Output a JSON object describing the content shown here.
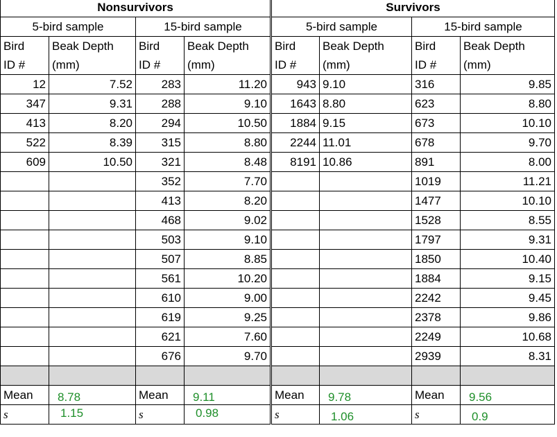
{
  "groups": {
    "nonsurvivors": "Nonsurvivors",
    "survivors": "Survivors"
  },
  "samples": {
    "five": "5-bird sample",
    "fifteen": "15-bird sample"
  },
  "col_headers": {
    "bird_l1": "Bird",
    "bird_l2": "ID #",
    "beak_l1": "Beak Depth",
    "beak_l2": "(mm)"
  },
  "rows": [
    {
      "ns5_id": "12",
      "ns5_val": "7.52",
      "ns15_id": "283",
      "ns15_val": "11.20",
      "s5_id": "943",
      "s5_val": "9.10",
      "s15_id": "316",
      "s15_val": "9.85"
    },
    {
      "ns5_id": "347",
      "ns5_val": "9.31",
      "ns15_id": "288",
      "ns15_val": "9.10",
      "s5_id": "1643",
      "s5_val": "8.80",
      "s15_id": "623",
      "s15_val": "8.80"
    },
    {
      "ns5_id": "413",
      "ns5_val": "8.20",
      "ns15_id": "294",
      "ns15_val": "10.50",
      "s5_id": "1884",
      "s5_val": "9.15",
      "s15_id": "673",
      "s15_val": "10.10"
    },
    {
      "ns5_id": "522",
      "ns5_val": "8.39",
      "ns15_id": "315",
      "ns15_val": "8.80",
      "s5_id": "2244",
      "s5_val": "11.01",
      "s15_id": "678",
      "s15_val": "9.70"
    },
    {
      "ns5_id": "609",
      "ns5_val": "10.50",
      "ns15_id": "321",
      "ns15_val": "8.48",
      "s5_id": "8191",
      "s5_val": "10.86",
      "s15_id": "891",
      "s15_val": "8.00"
    },
    {
      "ns5_id": "",
      "ns5_val": "",
      "ns15_id": "352",
      "ns15_val": "7.70",
      "s5_id": "",
      "s5_val": "",
      "s15_id": "1019",
      "s15_val": "11.21"
    },
    {
      "ns5_id": "",
      "ns5_val": "",
      "ns15_id": "413",
      "ns15_val": "8.20",
      "s5_id": "",
      "s5_val": "",
      "s15_id": "1477",
      "s15_val": "10.10"
    },
    {
      "ns5_id": "",
      "ns5_val": "",
      "ns15_id": "468",
      "ns15_val": "9.02",
      "s5_id": "",
      "s5_val": "",
      "s15_id": "1528",
      "s15_val": "8.55"
    },
    {
      "ns5_id": "",
      "ns5_val": "",
      "ns15_id": "503",
      "ns15_val": "9.10",
      "s5_id": "",
      "s5_val": "",
      "s15_id": "1797",
      "s15_val": "9.31"
    },
    {
      "ns5_id": "",
      "ns5_val": "",
      "ns15_id": "507",
      "ns15_val": "8.85",
      "s5_id": "",
      "s5_val": "",
      "s15_id": "1850",
      "s15_val": "10.40"
    },
    {
      "ns5_id": "",
      "ns5_val": "",
      "ns15_id": "561",
      "ns15_val": "10.20",
      "s5_id": "",
      "s5_val": "",
      "s15_id": "1884",
      "s15_val": "9.15"
    },
    {
      "ns5_id": "",
      "ns5_val": "",
      "ns15_id": "610",
      "ns15_val": "9.00",
      "s5_id": "",
      "s5_val": "",
      "s15_id": "2242",
      "s15_val": "9.45"
    },
    {
      "ns5_id": "",
      "ns5_val": "",
      "ns15_id": "619",
      "ns15_val": "9.25",
      "s5_id": "",
      "s5_val": "",
      "s15_id": "2378",
      "s15_val": "9.86"
    },
    {
      "ns5_id": "",
      "ns5_val": "",
      "ns15_id": "621",
      "ns15_val": "7.60",
      "s5_id": "",
      "s5_val": "",
      "s15_id": "2249",
      "s15_val": "10.68"
    },
    {
      "ns5_id": "",
      "ns5_val": "",
      "ns15_id": "676",
      "ns15_val": "9.70",
      "s5_id": "",
      "s5_val": "",
      "s15_id": "2939",
      "s15_val": "8.31"
    }
  ],
  "stats": {
    "mean_label": "Mean",
    "s_label": "s",
    "ns5": {
      "mean": "8.78",
      "s": "1.15"
    },
    "ns15": {
      "mean": "9.11",
      "s": "0.98"
    },
    "s5": {
      "mean": "9.78",
      "s": "1.06"
    },
    "s15": {
      "mean": "9.56",
      "s": "0.9"
    }
  },
  "colors": {
    "stat_values": "#1f8f2a",
    "blank_row": "#d9d9d9"
  }
}
